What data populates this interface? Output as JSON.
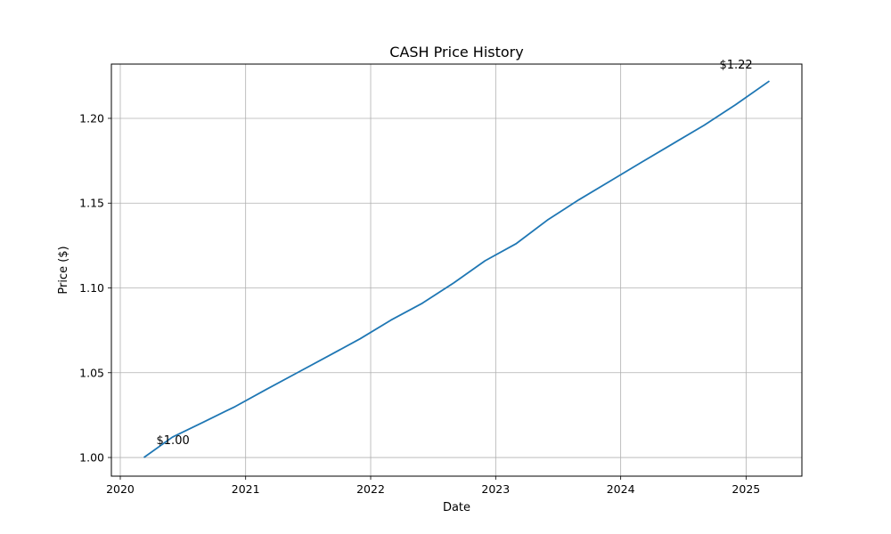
{
  "chart_data": {
    "type": "line",
    "title": "CASH Price History",
    "xlabel": "Date",
    "ylabel": "Price ($)",
    "xlim": [
      "2019-12-06",
      "2025-06-13"
    ],
    "ylim": [
      0.989,
      1.232
    ],
    "x_ticks": [
      "2020",
      "2021",
      "2022",
      "2023",
      "2024",
      "2025"
    ],
    "y_ticks": [
      "1.00",
      "1.05",
      "1.10",
      "1.15",
      "1.20"
    ],
    "grid": true,
    "series": [
      {
        "color": "#1f77b4",
        "points": [
          {
            "x": "2020-03-10",
            "y": 1.0
          },
          {
            "x": "2020-06-01",
            "y": 1.012
          },
          {
            "x": "2020-09-01",
            "y": 1.021
          },
          {
            "x": "2020-12-01",
            "y": 1.03
          },
          {
            "x": "2021-03-01",
            "y": 1.04
          },
          {
            "x": "2021-06-01",
            "y": 1.05
          },
          {
            "x": "2021-09-01",
            "y": 1.06
          },
          {
            "x": "2021-12-01",
            "y": 1.07
          },
          {
            "x": "2022-03-01",
            "y": 1.081
          },
          {
            "x": "2022-06-01",
            "y": 1.091
          },
          {
            "x": "2022-09-01",
            "y": 1.103
          },
          {
            "x": "2022-12-01",
            "y": 1.116
          },
          {
            "x": "2023-03-01",
            "y": 1.126
          },
          {
            "x": "2023-06-01",
            "y": 1.14
          },
          {
            "x": "2023-09-01",
            "y": 1.152
          },
          {
            "x": "2023-12-01",
            "y": 1.163
          },
          {
            "x": "2024-03-01",
            "y": 1.174
          },
          {
            "x": "2024-06-01",
            "y": 1.185
          },
          {
            "x": "2024-09-01",
            "y": 1.196
          },
          {
            "x": "2024-12-01",
            "y": 1.208
          },
          {
            "x": "2025-03-10",
            "y": 1.222
          }
        ]
      }
    ],
    "annotations": [
      {
        "text": "$1.00",
        "x": "2020-03-10",
        "y": 1.0
      },
      {
        "text": "$1.22",
        "x": "2025-03-10",
        "y": 1.222
      }
    ]
  }
}
